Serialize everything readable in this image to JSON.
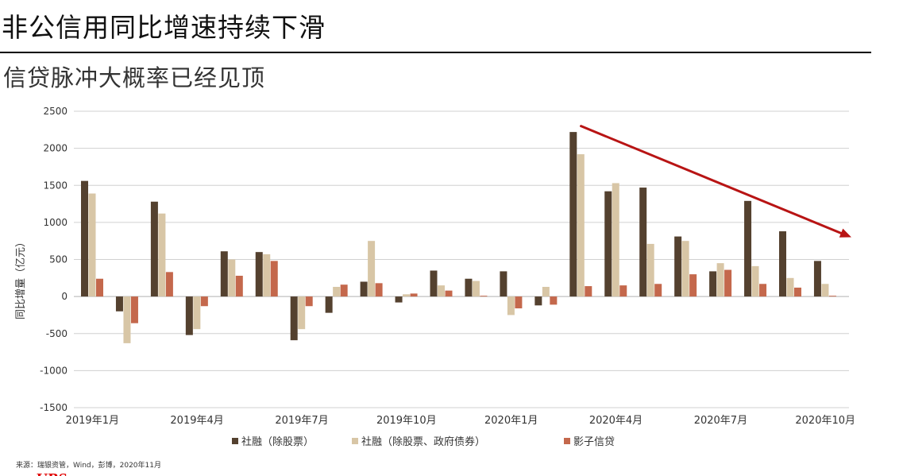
{
  "title": "非公信用同比增速持续下滑",
  "subtitle": "信贷脉冲大概率已经见顶",
  "source": "来源：瑞银资管，Wind，彭博，2020年11月",
  "logo": "UBS",
  "colors": {
    "series1": "#54412f",
    "series2": "#d8c6a6",
    "series3": "#c4684c",
    "arrow": "#b81414",
    "grid": "#d0d0d0",
    "axis_text": "#333333"
  },
  "chart_data": {
    "type": "bar",
    "ylabel": "同比增量（亿元）",
    "ylim": [
      -1500,
      2500
    ],
    "yticks": [
      2500,
      2000,
      1500,
      1000,
      500,
      0,
      -500,
      -1000,
      -1500
    ],
    "grid": true,
    "legend_position": "bottom",
    "categories": [
      "2019-01",
      "2019-02",
      "2019-03",
      "2019-04",
      "2019-05",
      "2019-06",
      "2019-07",
      "2019-08",
      "2019-09",
      "2019-10",
      "2019-11",
      "2019-12",
      "2020-01",
      "2020-02",
      "2020-03",
      "2020-04",
      "2020-05",
      "2020-06",
      "2020-07",
      "2020-08",
      "2020-09",
      "2020-10",
      "2020-11"
    ],
    "xtick_labels": [
      {
        "index": 0,
        "label": "2019年1月"
      },
      {
        "index": 3,
        "label": "2019年4月"
      },
      {
        "index": 6,
        "label": "2019年7月"
      },
      {
        "index": 9,
        "label": "2019年10月"
      },
      {
        "index": 12,
        "label": "2020年1月"
      },
      {
        "index": 15,
        "label": "2020年4月"
      },
      {
        "index": 18,
        "label": "2020年7月"
      },
      {
        "index": 21,
        "label": "2020年10月"
      }
    ],
    "series": [
      {
        "name": "社融（除股票）",
        "color": "#54412f",
        "values": [
          1560,
          -200,
          1280,
          -520,
          610,
          600,
          -590,
          -220,
          200,
          -80,
          350,
          240,
          340,
          -120,
          2220,
          1420,
          1470,
          810,
          340,
          1290,
          880,
          480,
          null
        ]
      },
      {
        "name": "社融（除股票、政府债券）",
        "color": "#d8c6a6",
        "values": [
          1390,
          -630,
          1120,
          -440,
          500,
          570,
          -440,
          130,
          750,
          30,
          150,
          210,
          -250,
          130,
          1920,
          1530,
          710,
          750,
          450,
          410,
          250,
          170,
          null
        ]
      },
      {
        "name": "影子信贷",
        "color": "#c4684c",
        "values": [
          240,
          -360,
          330,
          -130,
          280,
          480,
          -130,
          160,
          180,
          40,
          80,
          10,
          -160,
          -110,
          140,
          150,
          170,
          300,
          360,
          170,
          120,
          10,
          null
        ]
      }
    ],
    "annotations": [
      {
        "type": "arrow",
        "from": {
          "x": "2020-03",
          "y": 2300
        },
        "to": {
          "x": "2020-11",
          "y": 800
        }
      }
    ]
  }
}
